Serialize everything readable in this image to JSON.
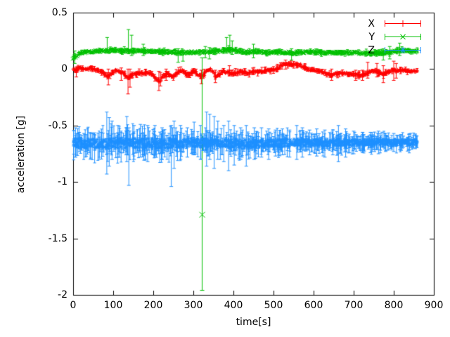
{
  "chart_data": {
    "type": "scatter",
    "style": "yerrorbars",
    "title": "",
    "xlabel": "time[s]",
    "ylabel": "acceleration [g]",
    "xlim": [
      0,
      900
    ],
    "ylim": [
      -2,
      0.5
    ],
    "xticks": [
      "0",
      "100",
      "200",
      "300",
      "400",
      "500",
      "600",
      "700",
      "800",
      "900"
    ],
    "yticks": [
      "0.5",
      "0",
      "-0.5",
      "-1",
      "-1.5",
      "-2"
    ],
    "grid": false,
    "legend_position": "top-right-inside",
    "axis_color": "#000000",
    "background": "#ffffff",
    "x_start": 0,
    "x_end": 858,
    "series": [
      {
        "name": "X",
        "color": "#ff0000",
        "marker": "plus",
        "seed": 11,
        "step": 1.3,
        "ebar_prob": 0.3,
        "ebar_scale": 1.8,
        "band_profile": [
          [
            0,
            0.014
          ],
          [
            858,
            0.014
          ]
        ],
        "mean": [
          [
            0,
            0.0
          ],
          [
            10,
            -0.01
          ],
          [
            18,
            0.01
          ],
          [
            30,
            0.0
          ],
          [
            45,
            0.005
          ],
          [
            58,
            -0.01
          ],
          [
            70,
            -0.02
          ],
          [
            80,
            -0.045
          ],
          [
            88,
            -0.06
          ],
          [
            95,
            -0.04
          ],
          [
            105,
            -0.015
          ],
          [
            117,
            -0.02
          ],
          [
            128,
            -0.04
          ],
          [
            137,
            -0.085
          ],
          [
            147,
            -0.05
          ],
          [
            158,
            -0.04
          ],
          [
            170,
            -0.03
          ],
          [
            180,
            -0.035
          ],
          [
            193,
            -0.04
          ],
          [
            205,
            -0.07
          ],
          [
            216,
            -0.11
          ],
          [
            226,
            -0.06
          ],
          [
            234,
            -0.04
          ],
          [
            243,
            -0.055
          ],
          [
            251,
            -0.07
          ],
          [
            260,
            -0.035
          ],
          [
            269,
            -0.01
          ],
          [
            278,
            -0.03
          ],
          [
            287,
            -0.055
          ],
          [
            296,
            -0.03
          ],
          [
            304,
            -0.02
          ],
          [
            312,
            -0.045
          ],
          [
            319,
            -0.07
          ],
          [
            325,
            -0.05
          ],
          [
            330,
            -0.03
          ],
          [
            336,
            -0.01
          ],
          [
            342,
            0.0
          ],
          [
            349,
            -0.03
          ],
          [
            357,
            -0.07
          ],
          [
            365,
            -0.045
          ],
          [
            374,
            -0.02
          ],
          [
            385,
            -0.03
          ],
          [
            398,
            -0.04
          ],
          [
            410,
            -0.03
          ],
          [
            421,
            -0.02
          ],
          [
            430,
            -0.03
          ],
          [
            439,
            -0.04
          ],
          [
            446,
            -0.02
          ],
          [
            460,
            -0.025
          ],
          [
            475,
            -0.02
          ],
          [
            490,
            -0.01
          ],
          [
            505,
            0.0
          ],
          [
            522,
            0.04
          ],
          [
            540,
            0.045
          ],
          [
            563,
            0.04
          ],
          [
            575,
            0.02
          ],
          [
            586,
            0.0
          ],
          [
            600,
            -0.01
          ],
          [
            621,
            -0.02
          ],
          [
            633,
            -0.04
          ],
          [
            645,
            -0.055
          ],
          [
            656,
            -0.04
          ],
          [
            668,
            -0.035
          ],
          [
            680,
            -0.04
          ],
          [
            691,
            -0.045
          ],
          [
            705,
            -0.05
          ],
          [
            721,
            -0.055
          ],
          [
            735,
            -0.035
          ],
          [
            748,
            -0.02
          ],
          [
            756,
            -0.02
          ],
          [
            765,
            -0.03
          ],
          [
            773,
            -0.045
          ],
          [
            785,
            -0.03
          ],
          [
            797,
            -0.01
          ],
          [
            810,
            -0.015
          ],
          [
            820,
            -0.01
          ],
          [
            835,
            -0.015
          ],
          [
            845,
            -0.02
          ],
          [
            858,
            -0.015
          ]
        ],
        "errorbars": [
          [
            8,
            -0.07,
            0.02
          ],
          [
            88,
            -0.14,
            0.0
          ],
          [
            120,
            -0.1,
            0.01
          ],
          [
            137,
            -0.22,
            0.0
          ],
          [
            142,
            -0.16,
            0.0
          ],
          [
            214,
            -0.19,
            -0.02
          ],
          [
            218,
            -0.15,
            -0.03
          ],
          [
            232,
            -0.1,
            0.0
          ],
          [
            320,
            -0.13,
            -0.01
          ],
          [
            355,
            -0.12,
            -0.01
          ],
          [
            390,
            -0.06,
            0.03
          ],
          [
            530,
            0.0,
            0.08
          ],
          [
            645,
            -0.1,
            0.0
          ],
          [
            705,
            -0.1,
            -0.01
          ],
          [
            722,
            -0.1,
            -0.01
          ],
          [
            735,
            -0.08,
            0.06
          ],
          [
            758,
            -0.07,
            0.05
          ],
          [
            774,
            -0.12,
            0.03
          ],
          [
            800,
            -0.1,
            0.07
          ],
          [
            806,
            -0.08,
            0.05
          ]
        ]
      },
      {
        "name": "Y",
        "color": "#00c000",
        "marker": "cross",
        "seed": 23,
        "step": 1.3,
        "ebar_prob": 0.28,
        "ebar_scale": 1.8,
        "band_profile": [
          [
            0,
            0.013
          ],
          [
            858,
            0.013
          ]
        ],
        "mean": [
          [
            0,
            0.1
          ],
          [
            6,
            0.11
          ],
          [
            12,
            0.125
          ],
          [
            20,
            0.14
          ],
          [
            30,
            0.15
          ],
          [
            45,
            0.155
          ],
          [
            60,
            0.16
          ],
          [
            80,
            0.163
          ],
          [
            100,
            0.168
          ],
          [
            115,
            0.163
          ],
          [
            130,
            0.16
          ],
          [
            145,
            0.163
          ],
          [
            160,
            0.162
          ],
          [
            175,
            0.165
          ],
          [
            190,
            0.16
          ],
          [
            205,
            0.158
          ],
          [
            220,
            0.153
          ],
          [
            235,
            0.15
          ],
          [
            250,
            0.148
          ],
          [
            265,
            0.145
          ],
          [
            280,
            0.148
          ],
          [
            295,
            0.15
          ],
          [
            310,
            0.148
          ],
          [
            322,
            0.15
          ],
          [
            335,
            0.153
          ],
          [
            350,
            0.158
          ],
          [
            365,
            0.16
          ],
          [
            380,
            0.168
          ],
          [
            390,
            0.172
          ],
          [
            400,
            0.165
          ],
          [
            412,
            0.158
          ],
          [
            425,
            0.153
          ],
          [
            440,
            0.15
          ],
          [
            455,
            0.152
          ],
          [
            470,
            0.15
          ],
          [
            490,
            0.149
          ],
          [
            510,
            0.15
          ],
          [
            530,
            0.148
          ],
          [
            550,
            0.147
          ],
          [
            570,
            0.149
          ],
          [
            590,
            0.151
          ],
          [
            610,
            0.149
          ],
          [
            630,
            0.147
          ],
          [
            650,
            0.146
          ],
          [
            670,
            0.145
          ],
          [
            690,
            0.144
          ],
          [
            710,
            0.143
          ],
          [
            730,
            0.141
          ],
          [
            750,
            0.14
          ],
          [
            768,
            0.14
          ],
          [
            782,
            0.145
          ],
          [
            795,
            0.155
          ],
          [
            808,
            0.165
          ],
          [
            818,
            0.17
          ],
          [
            828,
            0.166
          ],
          [
            840,
            0.16
          ],
          [
            850,
            0.156
          ],
          [
            858,
            0.155
          ]
        ],
        "errorbars": [
          [
            4,
            0.05,
            0.16
          ],
          [
            85,
            0.16,
            0.28
          ],
          [
            138,
            0.14,
            0.35
          ],
          [
            146,
            0.12,
            0.3
          ],
          [
            175,
            0.12,
            0.22
          ],
          [
            262,
            0.06,
            0.18
          ],
          [
            274,
            0.07,
            0.17
          ],
          [
            330,
            0.1,
            0.2
          ],
          [
            340,
            0.09,
            0.19
          ],
          [
            383,
            0.14,
            0.28
          ],
          [
            391,
            0.15,
            0.3
          ],
          [
            397,
            0.13,
            0.25
          ],
          [
            450,
            0.1,
            0.22
          ],
          [
            545,
            0.08,
            0.18
          ],
          [
            774,
            0.08,
            0.18
          ],
          [
            790,
            0.09,
            0.2
          ],
          [
            815,
            0.12,
            0.23
          ]
        ],
        "outliers": [
          {
            "t": 322,
            "y": -1.29,
            "low": -1.96,
            "high": 0.1
          }
        ]
      },
      {
        "name": "Z",
        "color": "#1e90ff",
        "marker": "asterisk",
        "seed": 37,
        "step": 1.0,
        "ebar_prob": 0.55,
        "ebar_scale": 2.4,
        "band_profile": [
          [
            0,
            0.048
          ],
          [
            150,
            0.05
          ],
          [
            300,
            0.046
          ],
          [
            450,
            0.04
          ],
          [
            600,
            0.034
          ],
          [
            750,
            0.03
          ],
          [
            858,
            0.027
          ]
        ],
        "mean": [
          [
            0,
            -0.65
          ],
          [
            25,
            -0.655
          ],
          [
            50,
            -0.658
          ],
          [
            75,
            -0.652
          ],
          [
            100,
            -0.656
          ],
          [
            125,
            -0.66
          ],
          [
            150,
            -0.655
          ],
          [
            175,
            -0.658
          ],
          [
            200,
            -0.66
          ],
          [
            225,
            -0.657
          ],
          [
            250,
            -0.66
          ],
          [
            275,
            -0.658
          ],
          [
            300,
            -0.652
          ],
          [
            325,
            -0.655
          ],
          [
            350,
            -0.652
          ],
          [
            375,
            -0.656
          ],
          [
            400,
            -0.66
          ],
          [
            425,
            -0.663
          ],
          [
            450,
            -0.66
          ],
          [
            475,
            -0.66
          ],
          [
            500,
            -0.656
          ],
          [
            525,
            -0.653
          ],
          [
            550,
            -0.65
          ],
          [
            575,
            -0.648
          ],
          [
            600,
            -0.654
          ],
          [
            625,
            -0.656
          ],
          [
            650,
            -0.653
          ],
          [
            675,
            -0.65
          ],
          [
            700,
            -0.652
          ],
          [
            725,
            -0.653
          ],
          [
            750,
            -0.65
          ],
          [
            775,
            -0.648
          ],
          [
            800,
            -0.65
          ],
          [
            825,
            -0.649
          ],
          [
            850,
            -0.647
          ],
          [
            858,
            -0.647
          ]
        ],
        "errorbars": [
          [
            6,
            -0.78,
            -0.52
          ],
          [
            84,
            -0.93,
            -0.38
          ],
          [
            90,
            -0.86,
            -0.43
          ],
          [
            97,
            -0.8,
            -0.46
          ],
          [
            112,
            -0.78,
            -0.5
          ],
          [
            134,
            -0.82,
            -0.42
          ],
          [
            139,
            -1.03,
            -0.52
          ],
          [
            152,
            -0.8,
            -0.5
          ],
          [
            168,
            -0.78,
            -0.49
          ],
          [
            186,
            -0.82,
            -0.5
          ],
          [
            204,
            -0.78,
            -0.5
          ],
          [
            222,
            -0.8,
            -0.52
          ],
          [
            245,
            -1.04,
            -0.5
          ],
          [
            252,
            -0.88,
            -0.46
          ],
          [
            268,
            -0.8,
            -0.5
          ],
          [
            285,
            -0.78,
            -0.52
          ],
          [
            302,
            -0.76,
            -0.47
          ],
          [
            318,
            -0.8,
            -0.5
          ],
          [
            333,
            -0.86,
            -0.38
          ],
          [
            341,
            -0.8,
            -0.4
          ],
          [
            352,
            -0.88,
            -0.42
          ],
          [
            361,
            -0.8,
            -0.46
          ],
          [
            376,
            -0.82,
            -0.5
          ],
          [
            388,
            -0.9,
            -0.46
          ],
          [
            402,
            -0.85,
            -0.5
          ],
          [
            418,
            -0.8,
            -0.52
          ],
          [
            432,
            -0.86,
            -0.5
          ],
          [
            452,
            -0.8,
            -0.52
          ],
          [
            470,
            -0.78,
            -0.52
          ],
          [
            488,
            -0.8,
            -0.53
          ],
          [
            505,
            -0.77,
            -0.54
          ],
          [
            522,
            -0.76,
            -0.53
          ],
          [
            540,
            -0.78,
            -0.54
          ],
          [
            558,
            -0.8,
            -0.5
          ],
          [
            572,
            -0.78,
            -0.52
          ],
          [
            590,
            -0.76,
            -0.54
          ],
          [
            608,
            -0.77,
            -0.53
          ],
          [
            628,
            -0.78,
            -0.54
          ],
          [
            648,
            -0.76,
            -0.54
          ],
          [
            662,
            -0.82,
            -0.5
          ],
          [
            680,
            -0.78,
            -0.53
          ],
          [
            700,
            -0.75,
            -0.55
          ],
          [
            722,
            -0.74,
            -0.56
          ],
          [
            742,
            -0.74,
            -0.56
          ],
          [
            762,
            -0.75,
            -0.55
          ],
          [
            780,
            -0.73,
            -0.57
          ],
          [
            800,
            -0.73,
            -0.57
          ],
          [
            818,
            -0.72,
            -0.58
          ],
          [
            838,
            -0.72,
            -0.58
          ]
        ]
      }
    ]
  }
}
